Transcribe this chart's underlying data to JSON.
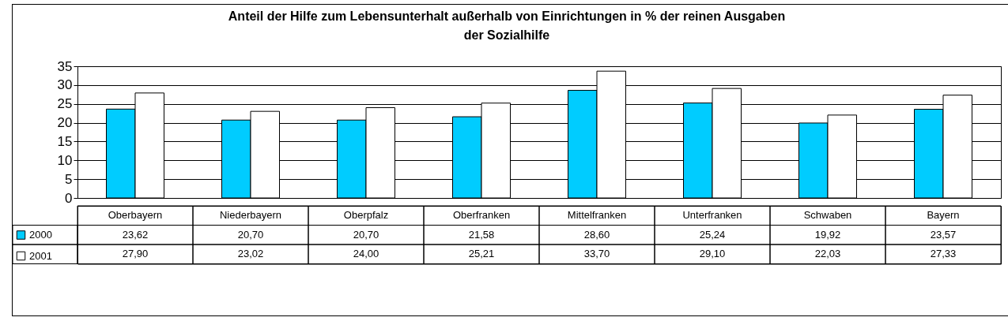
{
  "chart_data": {
    "type": "bar",
    "title": "Anteil der Hilfe zum Lebensunterhalt außerhalb von Einrichtungen in % der reinen Ausgaben der Sozialhilfe",
    "categories": [
      "Oberbayern",
      "Niederbayern",
      "Oberpfalz",
      "Oberfranken",
      "Mittelfranken",
      "Unterfranken",
      "Schwaben",
      "Bayern"
    ],
    "series": [
      {
        "name": "2000",
        "color": "#00ccff",
        "values": [
          23.62,
          20.7,
          20.7,
          21.58,
          28.6,
          25.24,
          19.92,
          23.57
        ],
        "value_labels": [
          "23,62",
          "20,70",
          "20,70",
          "21,58",
          "28,60",
          "25,24",
          "19,92",
          "23,57"
        ]
      },
      {
        "name": "2001",
        "color": "#ffffff",
        "values": [
          27.9,
          23.02,
          24.0,
          25.21,
          33.7,
          29.1,
          22.03,
          27.33
        ],
        "value_labels": [
          "27,90",
          "23,02",
          "24,00",
          "25,21",
          "33,70",
          "29,10",
          "22,03",
          "27,33"
        ]
      }
    ],
    "ylim": [
      0,
      35
    ],
    "yticks": [
      0,
      5,
      10,
      15,
      20,
      25,
      30,
      35
    ],
    "grid": "y",
    "legend": "bottom left"
  }
}
